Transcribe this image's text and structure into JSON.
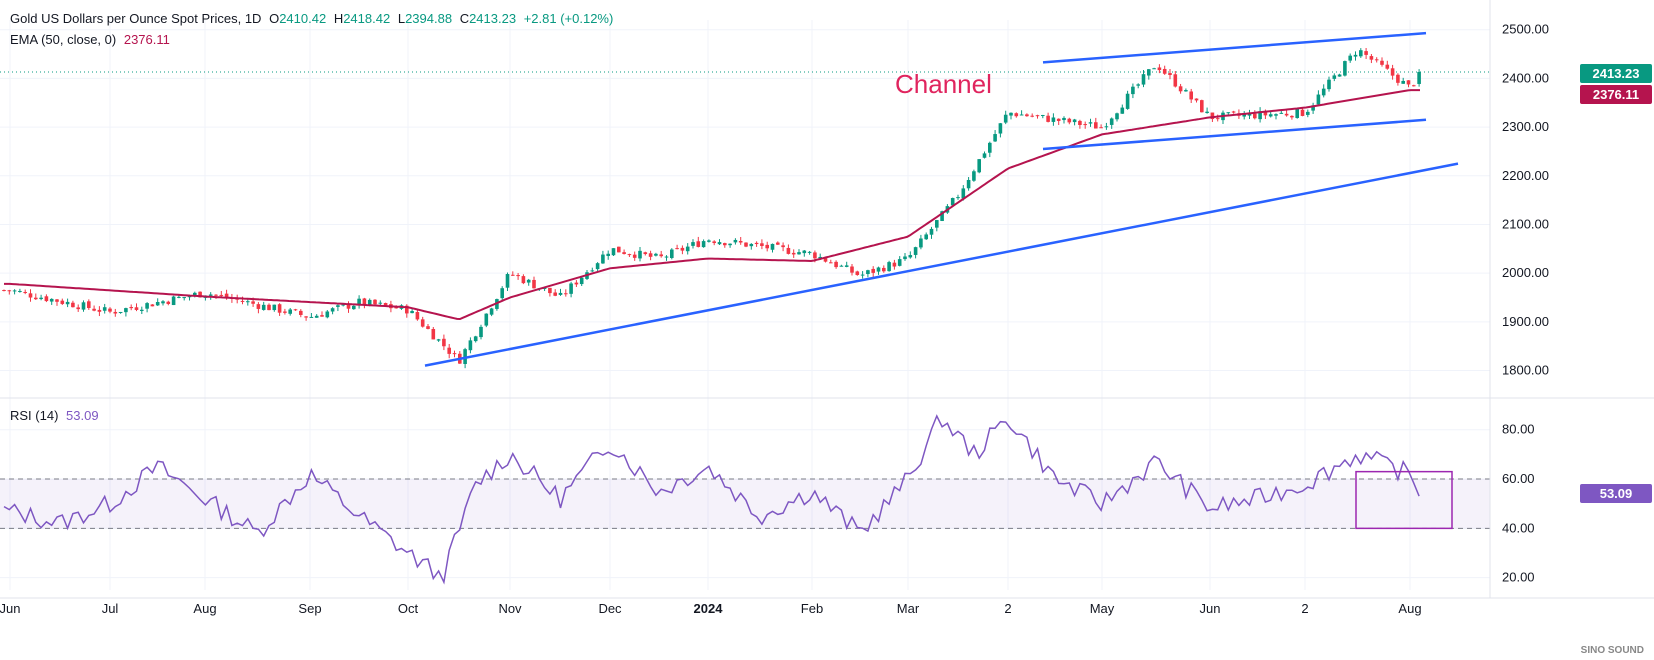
{
  "header": {
    "symbol": "Gold US Dollars per Ounce Spot Prices, 1D",
    "o_label": "O",
    "o": "2410.42",
    "h_label": "H",
    "h": "2418.42",
    "l_label": "L",
    "l": "2394.88",
    "c_label": "C",
    "c": "2413.23",
    "change": "+2.81 (+0.12%)",
    "ema_label": "EMA (50, close, 0)",
    "ema_value": "2376.11",
    "rsi_label": "RSI (14)",
    "rsi_value": "53.09"
  },
  "annotation": "Channel",
  "price_tags": {
    "close": "2413.23",
    "ema": "2376.11",
    "rsi": "53.09"
  },
  "watermark": "SINO SOUND",
  "colors": {
    "up": "#089981",
    "down": "#f23645",
    "ema": "#b5144e",
    "rsi": "#7e57c2",
    "trend": "#2962ff",
    "channel_label": "#e0245e"
  },
  "chart_data": [
    {
      "type": "candlestick",
      "title": "Gold US Dollars per Ounce Spot Prices, 1D",
      "x_ticks": [
        "Jun",
        "Jul",
        "Aug",
        "Sep",
        "Oct",
        "Nov",
        "Dec",
        "2024",
        "Feb",
        "Mar",
        "2",
        "May",
        "Jun",
        "2",
        "Aug"
      ],
      "y_ticks": [
        "1800.00",
        "1900.00",
        "2000.00",
        "2100.00",
        "2200.00",
        "2300.00",
        "2400.00",
        "2500.00"
      ],
      "ylim": [
        1760,
        2520
      ],
      "price_path": [
        [
          "Jun",
          1965
        ],
        [
          "Jul",
          1920
        ],
        [
          "Aug",
          1960
        ],
        [
          "Sep",
          1910
        ],
        [
          "Sep",
          1940
        ],
        [
          "Oct",
          1925
        ],
        [
          "Oct",
          1820
        ],
        [
          "Nov",
          2000
        ],
        [
          "Nov",
          1950
        ],
        [
          "Dec",
          2050
        ],
        [
          "Dec",
          2030
        ],
        [
          "2024",
          2070
        ],
        [
          "Feb",
          2040
        ],
        [
          "Feb",
          1995
        ],
        [
          "Mar",
          2030
        ],
        [
          "Mar",
          2160
        ],
        [
          "2",
          2330
        ],
        [
          "May",
          2300
        ],
        [
          "May",
          2430
        ],
        [
          "Jun",
          2320
        ],
        [
          "2",
          2330
        ],
        [
          "2",
          2460
        ],
        [
          "Aug",
          2380
        ],
        [
          "Aug",
          2413.23
        ]
      ],
      "series": [
        {
          "name": "EMA (50, close, 0)",
          "last_value": 2376.11,
          "path": [
            [
              "Jun",
              1978
            ],
            [
              "Aug",
              1952
            ],
            [
              "Oct",
              1930
            ],
            [
              "Oct",
              1905
            ],
            [
              "Nov",
              1950
            ],
            [
              "Dec",
              2010
            ],
            [
              "2024",
              2030
            ],
            [
              "Feb",
              2025
            ],
            [
              "Mar",
              2075
            ],
            [
              "2",
              2215
            ],
            [
              "May",
              2285
            ],
            [
              "Jun",
              2320
            ],
            [
              "2",
              2340
            ],
            [
              "Aug",
              2376.11
            ]
          ]
        }
      ],
      "trendlines": [
        {
          "from": [
            "Oct",
            1810
          ],
          "to": [
            "Aug",
            2225
          ]
        },
        {
          "from": [
            "2",
            2433
          ],
          "to": [
            "Aug",
            2493
          ]
        },
        {
          "from": [
            "2",
            2255
          ],
          "to": [
            "Aug",
            2315
          ]
        }
      ],
      "annotations": [
        "Channel"
      ],
      "last_close": 2413.23
    },
    {
      "type": "line",
      "title": "RSI (14)",
      "x_ticks": [
        "Jun",
        "Jul",
        "Aug",
        "Sep",
        "Oct",
        "Nov",
        "Dec",
        "2024",
        "Feb",
        "Mar",
        "2",
        "May",
        "Jun",
        "2",
        "Aug"
      ],
      "y_ticks": [
        "20.00",
        "40.00",
        "60.00",
        "80.00"
      ],
      "ylim": [
        15,
        88
      ],
      "bands": [
        40,
        60
      ],
      "series": [
        {
          "name": "RSI (14)",
          "last_value": 53.09,
          "path": [
            [
              "Jun",
              47
            ],
            [
              "Jun",
              42
            ],
            [
              "Jul",
              50
            ],
            [
              "Jul",
              65
            ],
            [
              "Aug",
              52
            ],
            [
              "Aug",
              38
            ],
            [
              "Sep",
              62
            ],
            [
              "Sep",
              45
            ],
            [
              "Oct",
              30
            ],
            [
              "Oct",
              20
            ],
            [
              "Oct",
              58
            ],
            [
              "Nov",
              70
            ],
            [
              "Nov",
              52
            ],
            [
              "Dec",
              75
            ],
            [
              "Dec",
              55
            ],
            [
              "2024",
              65
            ],
            [
              "2024",
              45
            ],
            [
              "Feb",
              55
            ],
            [
              "Feb",
              38
            ],
            [
              "Mar",
              60
            ],
            [
              "Mar",
              85
            ],
            [
              "Mar",
              70
            ],
            [
              "2",
              85
            ],
            [
              "2",
              60
            ],
            [
              "May",
              50
            ],
            [
              "May",
              67
            ],
            [
              "Jun",
              48
            ],
            [
              "Jun",
              52
            ],
            [
              "2",
              58
            ],
            [
              "2",
              70
            ],
            [
              "Aug",
              62
            ],
            [
              "Aug",
              53.09
            ]
          ]
        }
      ],
      "annotations": [
        "highlight box Jul–Aug, 40–62"
      ]
    }
  ]
}
